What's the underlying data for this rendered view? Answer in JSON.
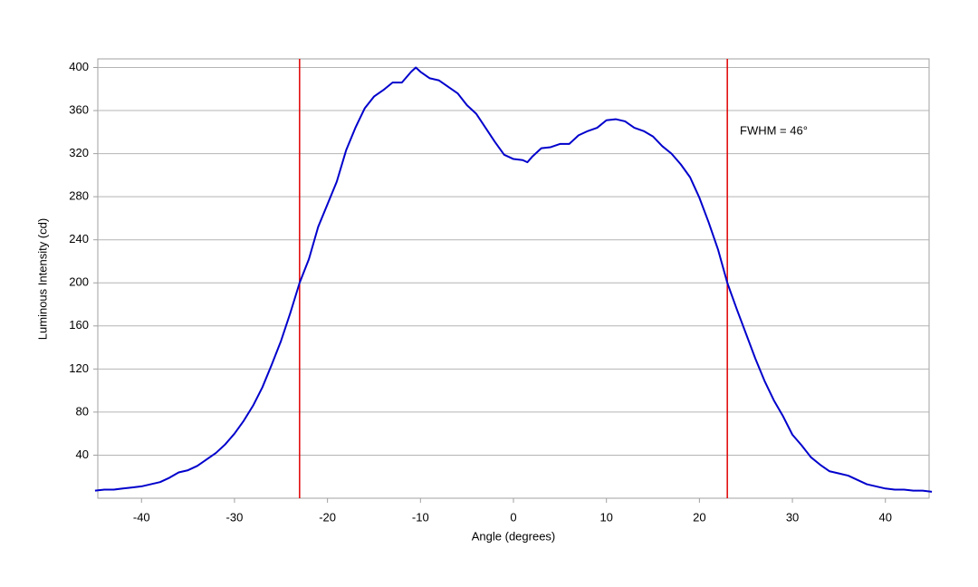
{
  "chart_data": {
    "type": "line",
    "xlabel": "Angle (degrees)",
    "ylabel": "Luminous Intensity (cd)",
    "annotation": "FWHM = 46°",
    "x": [
      -45,
      -44,
      -43,
      -42,
      -41,
      -40,
      -39,
      -38,
      -37,
      -36,
      -35,
      -34,
      -33,
      -32,
      -31,
      -30,
      -29,
      -28,
      -27,
      -26,
      -25,
      -24,
      -23,
      -22,
      -21,
      -20,
      -19,
      -18,
      -17,
      -16,
      -15,
      -14,
      -13,
      -12,
      -11,
      -10.5,
      -10,
      -9,
      -8,
      -7,
      -6,
      -5,
      -4,
      -3,
      -2,
      -1,
      0,
      1,
      1.5,
      2,
      3,
      4,
      5,
      6,
      7,
      8,
      9,
      10,
      11,
      12,
      13,
      14,
      15,
      16,
      17,
      18,
      19,
      20,
      21,
      22,
      23,
      24,
      25,
      26,
      27,
      28,
      29,
      30,
      31,
      32,
      33,
      34,
      35,
      36,
      37,
      38,
      39,
      40,
      41,
      42,
      43,
      44,
      45
    ],
    "series": [
      {
        "color": "#0000cc",
        "values": [
          7,
          8,
          8,
          9,
          10,
          11,
          13,
          15,
          19,
          24,
          26,
          30,
          36,
          42,
          50,
          60,
          72,
          86,
          103,
          124,
          146,
          172,
          200,
          222,
          252,
          273,
          294,
          323,
          344,
          362,
          373,
          379,
          386,
          386,
          396,
          400,
          396,
          390,
          388,
          382,
          376,
          365,
          357,
          344,
          331,
          319,
          315,
          314,
          312,
          317,
          325,
          326,
          329,
          329,
          337,
          341,
          344,
          351,
          352,
          350,
          344,
          341,
          336,
          327,
          320,
          310,
          298,
          279,
          256,
          231,
          200,
          176,
          153,
          130,
          109,
          91,
          76,
          59,
          49,
          38,
          31,
          25,
          23,
          21,
          17,
          13,
          11,
          9,
          8,
          8,
          7,
          7,
          6
        ]
      }
    ],
    "vlines": [
      -23,
      23
    ],
    "vline_color": "#e00000",
    "xlim": [
      -44.7,
      44.7
    ],
    "xticks": [
      -40,
      -30,
      -20,
      -10,
      0,
      10,
      20,
      30,
      40
    ],
    "ylim": [
      0,
      408
    ],
    "yticks": [
      40,
      80,
      120,
      160,
      200,
      240,
      280,
      320,
      360,
      400
    ],
    "grid": true
  }
}
